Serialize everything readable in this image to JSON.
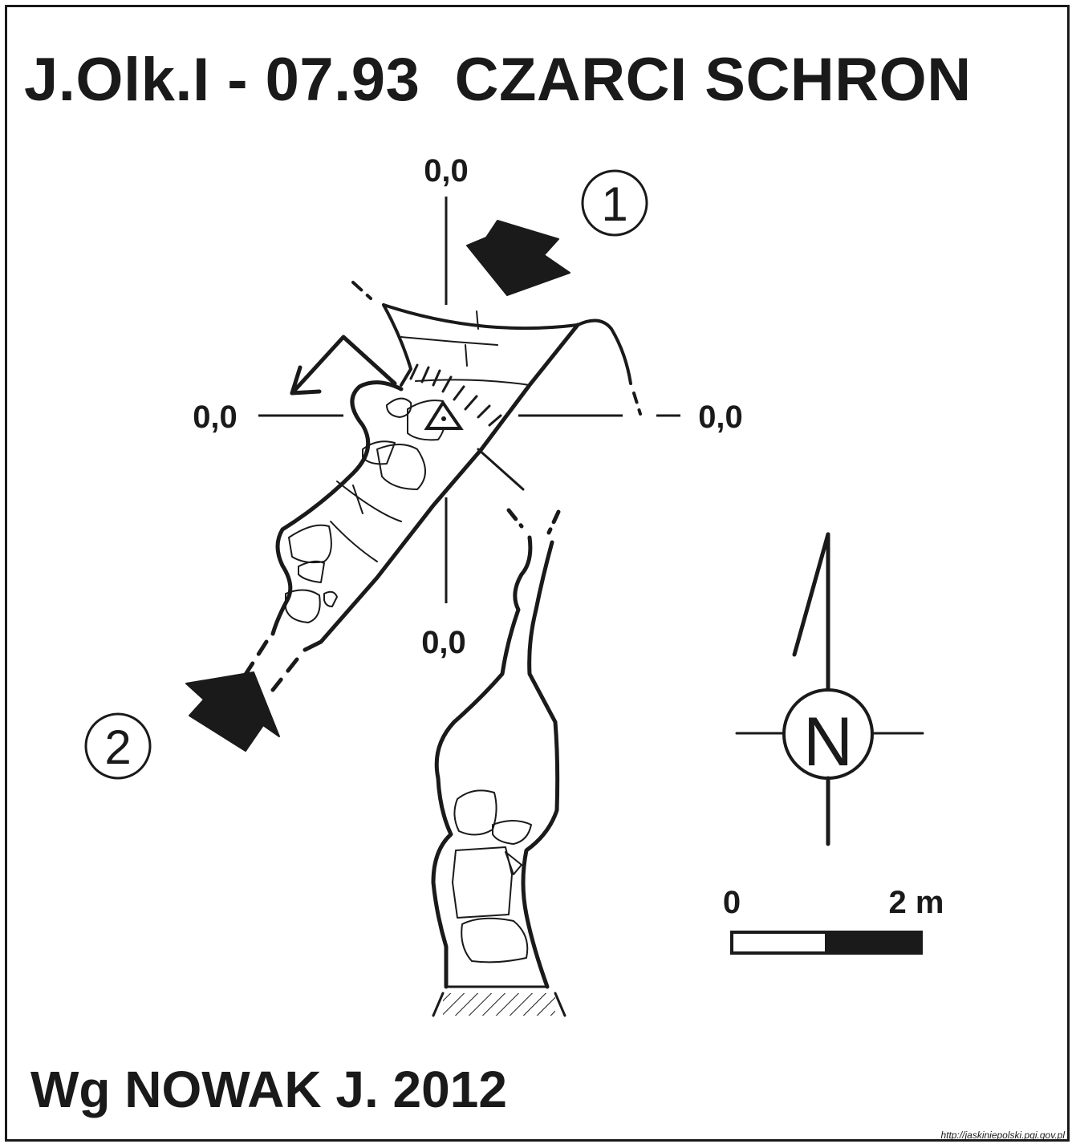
{
  "title": "J.Olk.I - 07.93  CZARCI SCHRON",
  "author": "Wg NOWAK J. 2012",
  "source_url": "http://jaskiniepolski.pgi.gov.pl",
  "section_labels": {
    "top": "0,0",
    "left": "0,0",
    "right": "0,0",
    "bottom": "0,0"
  },
  "entrances": [
    {
      "number": "1"
    },
    {
      "number": "2"
    }
  ],
  "compass": {
    "letter": "N"
  },
  "scale_bar": {
    "start_label": "0",
    "end_label": "2 m"
  },
  "colors": {
    "ink": "#1a1a1a",
    "paper": "#ffffff"
  }
}
